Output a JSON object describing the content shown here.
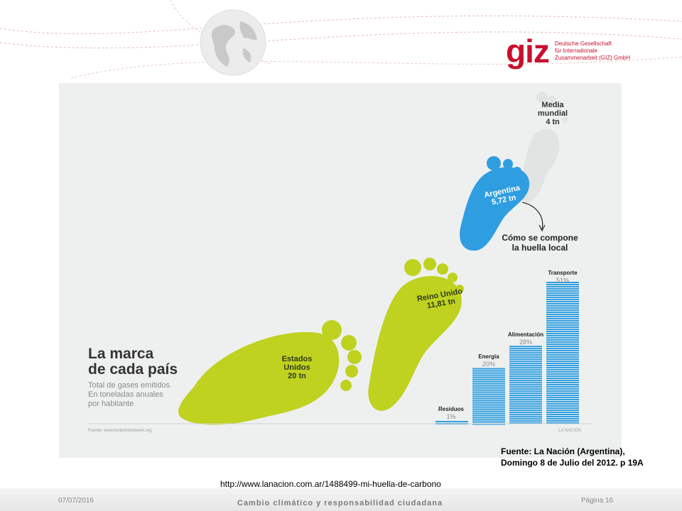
{
  "slide": {
    "logo": {
      "mark": "giz",
      "org_lines": [
        "Deutsche Gesellschaft",
        "für Internationale",
        "Zusammenarbeit (GIZ) GmbH"
      ]
    },
    "infographic": {
      "title": "La marca\nde cada país",
      "subtitle": "Total de gases emitidos.\nEn toneladas anuales\npor habitante",
      "source_small": "Fuente: www.footprintnetwork.org",
      "credit_small": "LA NACION",
      "footprints": {
        "media": "Media\nmundial\n4 tn",
        "argentina": "Argentina\n5,72 tn",
        "reino_unido": "Reino Unido\n11,81 tn",
        "estados_unidos": "Estados\nUnidos\n20 tn"
      },
      "compone_label": "Cómo se compone\nla huella local",
      "breakdown": [
        {
          "category": "Residuos",
          "percent_label": "1%",
          "percent": 1
        },
        {
          "category": "Energía",
          "percent_label": "20%",
          "percent": 20
        },
        {
          "category": "Alimentación",
          "percent_label": "28%",
          "percent": 28
        },
        {
          "category": "Transporte",
          "percent_label": "51%",
          "percent": 51
        }
      ],
      "colors": {
        "lime": "#bfd220",
        "blue": "#2f9ee0",
        "grey_foot": "#e2e4e4"
      }
    },
    "source_note": "Fuente: La Nación (Argentina),\nDomingo 8 de Julio del 2012. p 19A",
    "url": "http://www.lanacion.com.ar/1488499-mi-huella-de-carbono",
    "footer": {
      "date": "07/07/2016",
      "title": "Cambio climático y responsabilidad ciudadana",
      "page": "Página 16"
    }
  }
}
